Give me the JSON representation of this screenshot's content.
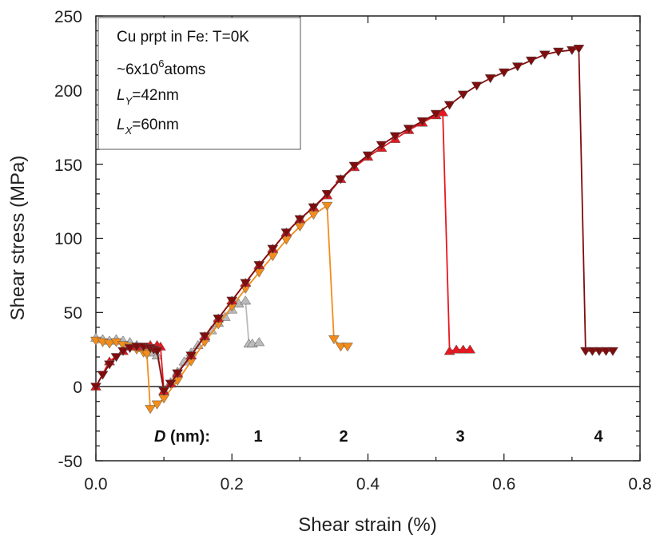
{
  "chart_data": {
    "type": "scatter",
    "title": "",
    "xlabel": "Shear strain (%)",
    "ylabel": "Shear stress (MPa)",
    "xlim": [
      0.0,
      0.8
    ],
    "ylim": [
      -50,
      250
    ],
    "x_ticks": [
      "0.0",
      "0.2",
      "0.4",
      "0.6",
      "0.8"
    ],
    "y_ticks": [
      "-50",
      "0",
      "50",
      "100",
      "150",
      "200",
      "250"
    ],
    "grid": false,
    "zero_line": true,
    "info_box": {
      "line1": "Cu prpt in Fe: T=0K",
      "line2_main": "~6x10",
      "line2_sup": "6",
      "line2_tail": "atoms",
      "line3_var": "L",
      "line3_sub": "Y",
      "line3_val": "=42nm",
      "line4_var": "L",
      "line4_sub": "X",
      "line4_val": "=60nm"
    },
    "d_label": {
      "var": "D",
      "rest": " (nm):",
      "values": [
        "1",
        "2",
        "3",
        "4"
      ]
    },
    "colors": {
      "d1": "#bbbbbb",
      "d2": "#f28c1b",
      "d3": "#e8161e",
      "d4": "#7f0d0d"
    },
    "series": [
      {
        "label": "1",
        "color": "#bbbbbb",
        "marker": "triangle-up",
        "x": [
          0.0,
          0.01,
          0.02,
          0.03,
          0.04,
          0.05,
          0.06,
          0.07,
          0.08,
          0.085,
          0.09,
          0.1,
          0.11,
          0.12,
          0.13,
          0.14,
          0.15,
          0.16,
          0.17,
          0.18,
          0.19,
          0.2,
          0.21,
          0.22,
          0.225,
          0.23,
          0.24
        ],
        "y": [
          33,
          32,
          31,
          32,
          31,
          30,
          28,
          26,
          24,
          23,
          21,
          -3,
          3,
          10,
          17,
          23,
          28,
          33,
          38,
          43,
          47,
          52,
          56,
          58,
          29,
          29,
          30
        ]
      },
      {
        "label": "2",
        "color": "#f28c1b",
        "marker": "triangle-down",
        "x": [
          0.0,
          0.01,
          0.02,
          0.03,
          0.04,
          0.05,
          0.06,
          0.07,
          0.075,
          0.08,
          0.09,
          0.1,
          0.12,
          0.14,
          0.16,
          0.18,
          0.2,
          0.22,
          0.24,
          0.26,
          0.28,
          0.3,
          0.32,
          0.34,
          0.35,
          0.36,
          0.37
        ],
        "y": [
          31,
          30,
          29,
          30,
          28,
          27,
          25,
          23,
          22,
          -15,
          -12,
          -8,
          4,
          17,
          30,
          42,
          54,
          66,
          77,
          88,
          99,
          108,
          116,
          122,
          32,
          27,
          27
        ]
      },
      {
        "label": "3",
        "color": "#e8161e",
        "marker": "triangle-up",
        "x": [
          0.0,
          0.02,
          0.04,
          0.06,
          0.08,
          0.09,
          0.095,
          0.1,
          0.11,
          0.12,
          0.14,
          0.16,
          0.18,
          0.2,
          0.22,
          0.24,
          0.26,
          0.28,
          0.3,
          0.32,
          0.34,
          0.36,
          0.38,
          0.4,
          0.42,
          0.44,
          0.46,
          0.48,
          0.5,
          0.51,
          0.52,
          0.53,
          0.54,
          0.55
        ],
        "y": [
          0,
          17,
          24,
          27,
          28,
          28,
          27,
          -3,
          2,
          9,
          21,
          34,
          46,
          58,
          70,
          82,
          93,
          104,
          113,
          121,
          129,
          140,
          148,
          155,
          161,
          167,
          173,
          178,
          183,
          185,
          24,
          25,
          25,
          25
        ]
      },
      {
        "label": "4",
        "color": "#7f0d0d",
        "marker": "triangle-down",
        "x": [
          0.0,
          0.01,
          0.02,
          0.03,
          0.04,
          0.05,
          0.06,
          0.07,
          0.08,
          0.085,
          0.09,
          0.1,
          0.11,
          0.12,
          0.14,
          0.16,
          0.18,
          0.2,
          0.22,
          0.24,
          0.26,
          0.28,
          0.3,
          0.32,
          0.34,
          0.36,
          0.38,
          0.4,
          0.42,
          0.44,
          0.46,
          0.48,
          0.5,
          0.52,
          0.54,
          0.56,
          0.58,
          0.6,
          0.62,
          0.64,
          0.66,
          0.68,
          0.7,
          0.71,
          0.72,
          0.73,
          0.74,
          0.75,
          0.76
        ],
        "y": [
          0,
          8,
          15,
          20,
          24,
          26,
          27,
          27,
          26,
          25,
          24,
          -3,
          2,
          9,
          21,
          34,
          46,
          58,
          70,
          82,
          93,
          104,
          113,
          121,
          130,
          140,
          149,
          156,
          163,
          169,
          174,
          179,
          184,
          190,
          197,
          203,
          208,
          212,
          216,
          220,
          224,
          226,
          227,
          228,
          24,
          24,
          24,
          24,
          24
        ]
      }
    ]
  }
}
